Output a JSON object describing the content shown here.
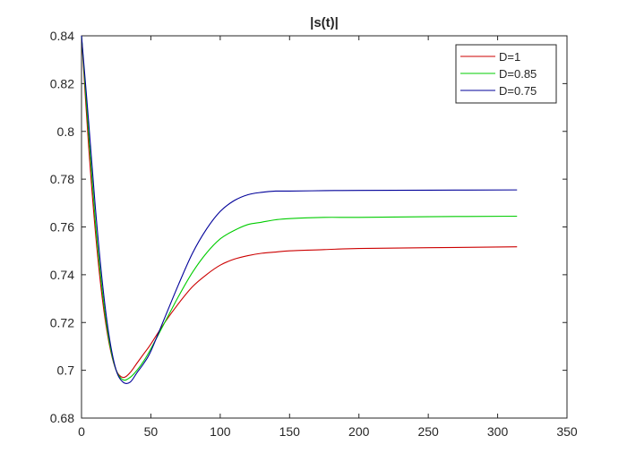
{
  "chart_data": {
    "type": "line",
    "title": "|s(t)|",
    "xlabel": "",
    "ylabel": "",
    "xlim": [
      0,
      350
    ],
    "ylim": [
      0.68,
      0.84
    ],
    "xticks": [
      0,
      50,
      100,
      150,
      200,
      250,
      300,
      350
    ],
    "xtick_labels": [
      "0",
      "50",
      "100",
      "150",
      "200",
      "250",
      "300",
      "350"
    ],
    "yticks": [
      0.68,
      0.7,
      0.72,
      0.74,
      0.76,
      0.78,
      0.8,
      0.82,
      0.84
    ],
    "ytick_labels": [
      "0.68",
      "0.7",
      "0.72",
      "0.74",
      "0.76",
      "0.78",
      "0.8",
      "0.82",
      "0.84"
    ],
    "grid": false,
    "legend_position": "top-right",
    "series": [
      {
        "name": "D=1",
        "color": "#cc0000",
        "x": [
          0,
          5,
          10,
          15,
          20,
          25,
          30,
          35,
          40,
          45,
          50,
          60,
          70,
          80,
          90,
          100,
          110,
          120,
          130,
          140,
          150,
          175,
          200,
          250,
          314
        ],
        "y": [
          0.84,
          0.795,
          0.758,
          0.73,
          0.711,
          0.7,
          0.697,
          0.699,
          0.703,
          0.707,
          0.711,
          0.72,
          0.728,
          0.735,
          0.74,
          0.744,
          0.7465,
          0.748,
          0.749,
          0.7495,
          0.75,
          0.7505,
          0.751,
          0.7513,
          0.7517
        ]
      },
      {
        "name": "D=0.85",
        "color": "#00cc00",
        "x": [
          0,
          5,
          10,
          15,
          20,
          25,
          30,
          35,
          40,
          45,
          50,
          60,
          70,
          80,
          90,
          100,
          110,
          120,
          130,
          140,
          150,
          175,
          200,
          250,
          314
        ],
        "y": [
          0.84,
          0.8,
          0.762,
          0.733,
          0.712,
          0.7,
          0.696,
          0.697,
          0.7,
          0.704,
          0.709,
          0.72,
          0.731,
          0.741,
          0.749,
          0.755,
          0.7585,
          0.761,
          0.762,
          0.763,
          0.7635,
          0.764,
          0.764,
          0.7643,
          0.7645
        ]
      },
      {
        "name": "D=0.75",
        "color": "#000099",
        "x": [
          0,
          5,
          10,
          15,
          20,
          25,
          30,
          35,
          40,
          45,
          50,
          60,
          70,
          80,
          90,
          100,
          110,
          120,
          130,
          140,
          150,
          175,
          200,
          250,
          314
        ],
        "y": [
          0.84,
          0.805,
          0.768,
          0.737,
          0.714,
          0.7,
          0.695,
          0.695,
          0.699,
          0.703,
          0.708,
          0.722,
          0.736,
          0.749,
          0.759,
          0.7665,
          0.771,
          0.7735,
          0.7745,
          0.775,
          0.775,
          0.7752,
          0.7753,
          0.7754,
          0.7755
        ]
      }
    ]
  }
}
